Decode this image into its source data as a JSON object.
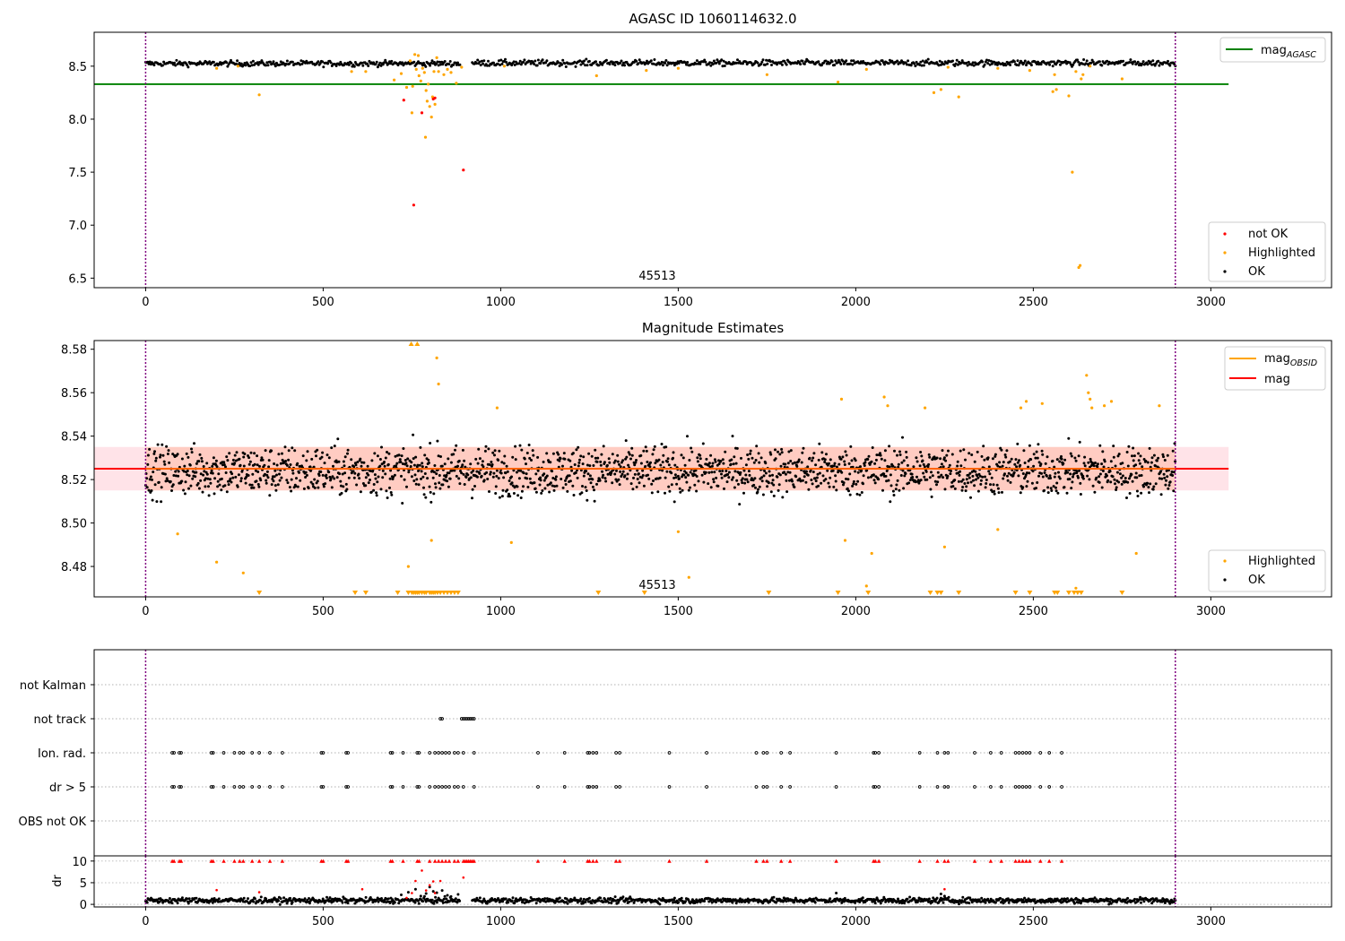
{
  "chart_data": [
    {
      "type": "scatter",
      "title": "AGASC ID 1060114632.0",
      "xlim": [
        -145,
        3340
      ],
      "ylim": [
        6.41,
        8.82
      ],
      "xticks": [
        0,
        500,
        1000,
        1500,
        2000,
        2500,
        3000
      ],
      "yticks": [
        6.5,
        7.0,
        7.5,
        8.0,
        8.5
      ],
      "ytick_labels": [
        "6.5",
        "7.0",
        "7.5",
        "8.0",
        "8.5"
      ],
      "annotation": "45513",
      "annotation_x": 1450,
      "vlines": [
        0,
        2900
      ],
      "hline": {
        "label": "mag_AGASC",
        "value": 8.33,
        "x": [
          -145,
          3050
        ],
        "color": "#008000"
      },
      "ok_series": {
        "name": "OK",
        "color": "#000000",
        "segments": [
          [
            0,
            885,
            8.525,
            0.018
          ],
          [
            920,
            2900,
            8.53,
            0.02
          ]
        ]
      },
      "highlighted": {
        "name": "Highlighted",
        "color": "#ffa500",
        "points": [
          [
            320,
            8.23
          ],
          [
            200,
            8.48
          ],
          [
            260,
            8.5
          ],
          [
            580,
            8.45
          ],
          [
            620,
            8.45
          ],
          [
            700,
            8.37
          ],
          [
            720,
            8.43
          ],
          [
            735,
            8.3
          ],
          [
            745,
            8.55
          ],
          [
            750,
            8.06
          ],
          [
            752,
            8.31
          ],
          [
            758,
            8.61
          ],
          [
            762,
            8.47
          ],
          [
            768,
            8.6
          ],
          [
            770,
            8.41
          ],
          [
            775,
            8.36
          ],
          [
            780,
            8.48
          ],
          [
            785,
            8.44
          ],
          [
            788,
            7.83
          ],
          [
            790,
            8.27
          ],
          [
            793,
            8.17
          ],
          [
            796,
            8.33
          ],
          [
            800,
            8.12
          ],
          [
            805,
            8.02
          ],
          [
            808,
            8.21
          ],
          [
            812,
            8.45
          ],
          [
            815,
            8.14
          ],
          [
            820,
            8.58
          ],
          [
            825,
            8.45
          ],
          [
            840,
            8.42
          ],
          [
            850,
            8.47
          ],
          [
            860,
            8.44
          ],
          [
            875,
            8.34
          ],
          [
            890,
            8.49
          ],
          [
            1010,
            8.5
          ],
          [
            1270,
            8.41
          ],
          [
            1410,
            8.46
          ],
          [
            1500,
            8.48
          ],
          [
            1750,
            8.42
          ],
          [
            1950,
            8.35
          ],
          [
            2030,
            8.47
          ],
          [
            2220,
            8.25
          ],
          [
            2240,
            8.28
          ],
          [
            2260,
            8.49
          ],
          [
            2290,
            8.21
          ],
          [
            2400,
            8.48
          ],
          [
            2490,
            8.46
          ],
          [
            2555,
            8.26
          ],
          [
            2560,
            8.42
          ],
          [
            2565,
            8.28
          ],
          [
            2600,
            8.22
          ],
          [
            2610,
            7.5
          ],
          [
            2620,
            8.45
          ],
          [
            2628,
            6.6
          ],
          [
            2632,
            6.62
          ],
          [
            2635,
            8.38
          ],
          [
            2640,
            8.42
          ],
          [
            2660,
            8.5
          ],
          [
            2750,
            8.38
          ]
        ]
      },
      "not_ok": {
        "name": "not OK",
        "color": "#ff0000",
        "points": [
          [
            727,
            8.18
          ],
          [
            755,
            7.19
          ],
          [
            778,
            8.06
          ],
          [
            810,
            8.19
          ],
          [
            815,
            8.2
          ],
          [
            895,
            7.52
          ]
        ]
      },
      "legend_top": [
        {
          "name": "mag_AGASC",
          "base": "mag",
          "sub": "AGASC",
          "color": "#008000"
        }
      ],
      "legend_bottom": [
        {
          "name": "not OK",
          "color": "#ff0000"
        },
        {
          "name": "Highlighted",
          "color": "#ffa500"
        },
        {
          "name": "OK",
          "color": "#000000"
        }
      ]
    },
    {
      "type": "scatter",
      "title": "Magnitude Estimates",
      "xlim": [
        -145,
        3340
      ],
      "ylim": [
        8.466,
        8.584
      ],
      "xticks": [
        0,
        500,
        1000,
        1500,
        2000,
        2500,
        3000
      ],
      "yticks": [
        8.48,
        8.5,
        8.52,
        8.54,
        8.56,
        8.58
      ],
      "ytick_labels": [
        "8.48",
        "8.50",
        "8.52",
        "8.54",
        "8.56",
        "8.58"
      ],
      "annotation": "45513",
      "annotation_x": 1450,
      "vlines": [
        0,
        2900
      ],
      "mag_line": {
        "label": "mag",
        "value": 8.525,
        "x": [
          -145,
          3050
        ],
        "color": "#ff0000"
      },
      "mag_obsid": {
        "label": "mag_OBSID",
        "value": 8.525,
        "x": [
          0,
          2900
        ],
        "color": "#ffa500"
      },
      "bands": [
        {
          "y": [
            8.515,
            8.535
          ],
          "x": [
            -145,
            3050
          ],
          "color": "#ffc0cb",
          "opacity": 0.45
        },
        {
          "y": [
            8.515,
            8.535
          ],
          "x": [
            0,
            2900
          ],
          "color": "#ffa07a",
          "opacity": 0.35
        }
      ],
      "ok_series": {
        "name": "OK",
        "color": "#000000",
        "segments": [
          [
            0,
            2900,
            8.524,
            0.008
          ]
        ]
      },
      "highlighted": {
        "name": "Highlighted",
        "color": "#ffa500",
        "points": [
          [
            90,
            8.495
          ],
          [
            200,
            8.482
          ],
          [
            275,
            8.477
          ],
          [
            740,
            8.48
          ],
          [
            805,
            8.492
          ],
          [
            825,
            8.564
          ],
          [
            820,
            8.576
          ],
          [
            990,
            8.553
          ],
          [
            1030,
            8.491
          ],
          [
            1500,
            8.496
          ],
          [
            1530,
            8.475
          ],
          [
            1960,
            8.557
          ],
          [
            1970,
            8.492
          ],
          [
            2030,
            8.471
          ],
          [
            2045,
            8.486
          ],
          [
            2080,
            8.558
          ],
          [
            2090,
            8.554
          ],
          [
            2195,
            8.553
          ],
          [
            2250,
            8.489
          ],
          [
            2400,
            8.497
          ],
          [
            2465,
            8.553
          ],
          [
            2480,
            8.556
          ],
          [
            2525,
            8.555
          ],
          [
            2620,
            8.47
          ],
          [
            2650,
            8.568
          ],
          [
            2655,
            8.56
          ],
          [
            2660,
            8.557
          ],
          [
            2665,
            8.553
          ],
          [
            2700,
            8.554
          ],
          [
            2720,
            8.556
          ],
          [
            2790,
            8.486
          ],
          [
            2855,
            8.554
          ]
        ]
      },
      "clipped_top": [
        748,
        765
      ],
      "clipped_bottom": [
        320,
        590,
        620,
        710,
        740,
        750,
        755,
        760,
        765,
        770,
        778,
        785,
        790,
        800,
        805,
        810,
        815,
        822,
        830,
        840,
        850,
        860,
        870,
        880,
        1275,
        1405,
        1755,
        1950,
        2035,
        2210,
        2230,
        2240,
        2290,
        2450,
        2490,
        2560,
        2568,
        2600,
        2615,
        2625,
        2635,
        2750
      ],
      "legend_top": [
        {
          "name": "mag_OBSID",
          "base": "mag",
          "sub": "OBSID",
          "color": "#ffa500"
        },
        {
          "name": "mag",
          "base": "mag",
          "sub": "",
          "color": "#ff0000"
        }
      ],
      "legend_bottom": [
        {
          "name": "Highlighted",
          "color": "#ffa500"
        },
        {
          "name": "OK",
          "color": "#000000"
        }
      ]
    },
    {
      "type": "scatter",
      "title": "",
      "xlim": [
        -145,
        3340
      ],
      "categories": [
        "not Kalman",
        "not track",
        "Ion. rad.",
        "dr > 5",
        "OBS not OK"
      ],
      "vlines": [
        0,
        2900
      ],
      "flags": {
        "not Kalman": [],
        "not track": [
          830,
          835,
          890,
          895,
          900,
          905,
          910,
          915,
          920,
          925
        ],
        "Ion. rad.": [
          75,
          80,
          95,
          100,
          185,
          190,
          220,
          250,
          265,
          275,
          300,
          320,
          350,
          385,
          495,
          500,
          565,
          570,
          690,
          695,
          725,
          765,
          770,
          800,
          815,
          825,
          835,
          845,
          855,
          870,
          880,
          895,
          925,
          1105,
          1180,
          1245,
          1250,
          1260,
          1270,
          1325,
          1335,
          1475,
          1580,
          1720,
          1740,
          1750,
          1790,
          1815,
          1945,
          2050,
          2055,
          2065,
          2180,
          2230,
          2250,
          2260,
          2335,
          2380,
          2410,
          2450,
          2460,
          2470,
          2480,
          2490,
          2520,
          2545,
          2580
        ],
        "dr > 5": [
          75,
          80,
          95,
          100,
          185,
          190,
          220,
          250,
          265,
          275,
          300,
          320,
          350,
          385,
          495,
          500,
          565,
          570,
          690,
          695,
          725,
          765,
          770,
          800,
          815,
          825,
          835,
          845,
          855,
          870,
          880,
          895,
          925,
          1105,
          1180,
          1245,
          1250,
          1260,
          1270,
          1325,
          1335,
          1475,
          1580,
          1720,
          1740,
          1750,
          1790,
          1815,
          1945,
          2050,
          2055,
          2065,
          2180,
          2230,
          2250,
          2260,
          2335,
          2380,
          2410,
          2450,
          2460,
          2470,
          2480,
          2490,
          2520,
          2545,
          2580
        ],
        "OBS not OK": []
      }
    },
    {
      "type": "scatter",
      "title": "",
      "ylabel": "dr",
      "xlim": [
        -145,
        3340
      ],
      "ylim": [
        -0.6,
        11.2
      ],
      "xticks": [
        0,
        500,
        1000,
        1500,
        2000,
        2500,
        3000
      ],
      "yticks": [
        0,
        5,
        10
      ],
      "ytick_labels": [
        "0",
        "5",
        "10"
      ],
      "vlines": [
        0,
        2900
      ],
      "ok_series": {
        "name": "OK",
        "color": "#000000",
        "segments": [
          [
            0,
            885,
            0.9,
            0.45
          ],
          [
            920,
            2900,
            0.9,
            0.45
          ]
        ]
      },
      "excursions": [
        [
          720,
          2.2
        ],
        [
          740,
          2.8
        ],
        [
          760,
          3.5
        ],
        [
          775,
          1.9
        ],
        [
          790,
          2.5
        ],
        [
          800,
          4.0
        ],
        [
          810,
          3.0
        ],
        [
          820,
          2.7
        ],
        [
          835,
          3.2
        ],
        [
          850,
          2.1
        ],
        [
          860,
          1.8
        ],
        [
          880,
          2.3
        ],
        [
          1945,
          2.6
        ],
        [
          2240,
          2.4
        ],
        [
          2250,
          1.9
        ]
      ],
      "red_points": [
        [
          200,
          3.3
        ],
        [
          320,
          2.8
        ],
        [
          610,
          3.5
        ],
        [
          735,
          1.5
        ],
        [
          750,
          2.6
        ],
        [
          760,
          5.4
        ],
        [
          778,
          7.8
        ],
        [
          790,
          3.2
        ],
        [
          800,
          4.4
        ],
        [
          810,
          5.3
        ],
        [
          815,
          2.6
        ],
        [
          830,
          5.4
        ],
        [
          895,
          6.2
        ],
        [
          2250,
          3.5
        ]
      ],
      "capped": [
        75,
        80,
        95,
        100,
        185,
        190,
        220,
        250,
        265,
        275,
        300,
        320,
        350,
        385,
        495,
        500,
        565,
        570,
        690,
        695,
        725,
        765,
        770,
        800,
        815,
        825,
        835,
        845,
        855,
        870,
        880,
        895,
        900,
        905,
        910,
        915,
        920,
        925,
        1105,
        1180,
        1245,
        1250,
        1260,
        1270,
        1325,
        1335,
        1475,
        1580,
        1720,
        1740,
        1750,
        1790,
        1815,
        1945,
        2050,
        2055,
        2065,
        2180,
        2230,
        2250,
        2260,
        2335,
        2380,
        2410,
        2450,
        2460,
        2470,
        2480,
        2490,
        2520,
        2545,
        2580
      ]
    }
  ]
}
